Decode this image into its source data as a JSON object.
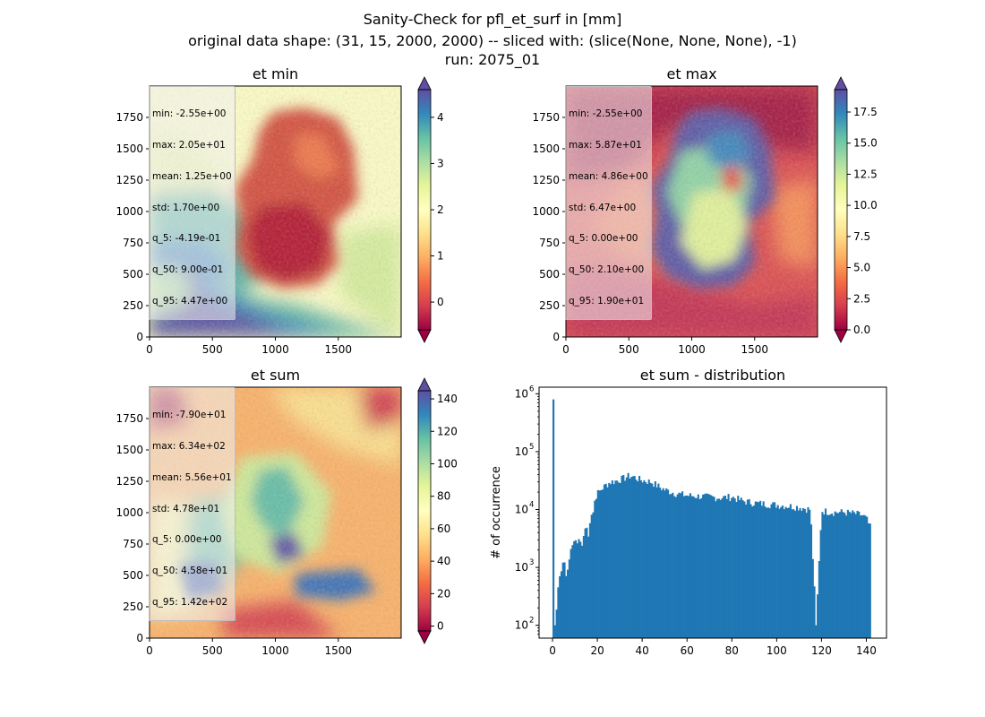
{
  "figure": {
    "title_lines": [
      "Sanity-Check for pfl_et_surf in [mm]",
      "original data shape: (31, 15, 2000, 2000) -- sliced with: (slice(None, None, None), -1)",
      "run: 2075_01"
    ]
  },
  "colors": {
    "spectral": [
      "#9e0142",
      "#d53e4f",
      "#f46d43",
      "#fdae61",
      "#fee08b",
      "#ffffbf",
      "#e6f598",
      "#abdda4",
      "#66c2a5",
      "#3288bd",
      "#5e4fa2"
    ],
    "bar": "#1f77b4",
    "stats_box": "#f0f0f0"
  },
  "chart_data": [
    {
      "type": "heatmap",
      "title": "et min",
      "xlim": [
        0,
        2000
      ],
      "ylim": [
        0,
        2000
      ],
      "xticks": [
        0,
        500,
        1000,
        1500
      ],
      "yticks": [
        0,
        250,
        500,
        750,
        1000,
        1250,
        1500,
        1750
      ],
      "colorbar": {
        "range": [
          -0.6,
          4.6
        ],
        "ticks": [
          0,
          1,
          2,
          3,
          4
        ],
        "extend": "both"
      },
      "stats": [
        "min: -2.55e+00",
        "max: 2.05e+01",
        "mean: 1.25e+00",
        "std: 1.70e+00",
        "q_5: -4.19e-01",
        "q_50: 9.00e-01",
        "q_95: 4.47e+00"
      ]
    },
    {
      "type": "heatmap",
      "title": "et max",
      "xlim": [
        0,
        2000
      ],
      "ylim": [
        0,
        2000
      ],
      "xticks": [
        0,
        500,
        1000,
        1500
      ],
      "yticks": [
        0,
        250,
        500,
        750,
        1000,
        1250,
        1500,
        1750
      ],
      "colorbar": {
        "range": [
          0,
          19.3
        ],
        "ticks": [
          0.0,
          2.5,
          5.0,
          7.5,
          10.0,
          12.5,
          15.0,
          17.5
        ],
        "tick_labels": [
          "0.0",
          "2.5",
          "5.0",
          "7.5",
          "10.0",
          "12.5",
          "15.0",
          "17.5"
        ],
        "extend": "both"
      },
      "stats": [
        "min: -2.55e+00",
        "max: 5.87e+01",
        "mean: 4.86e+00",
        "std: 6.47e+00",
        "q_5: 0.00e+00",
        "q_50: 2.10e+00",
        "q_95: 1.90e+01"
      ]
    },
    {
      "type": "heatmap",
      "title": "et sum",
      "xlim": [
        0,
        2000
      ],
      "ylim": [
        0,
        2000
      ],
      "xticks": [
        0,
        500,
        1000,
        1500
      ],
      "yticks": [
        0,
        250,
        500,
        750,
        1000,
        1250,
        1500,
        1750
      ],
      "colorbar": {
        "range": [
          -3,
          145
        ],
        "ticks": [
          0,
          20,
          40,
          60,
          80,
          100,
          120,
          140
        ],
        "extend": "both"
      },
      "stats": [
        "min: -7.90e+01",
        "max: 6.34e+02",
        "mean: 5.56e+01",
        "std: 4.78e+01",
        "q_5: 0.00e+00",
        "q_50: 4.58e+01",
        "q_95: 1.42e+02"
      ]
    },
    {
      "type": "bar",
      "title": "et sum - distribution",
      "xlabel": "",
      "ylabel": "# of occurrence",
      "yscale": "log",
      "xlim": [
        -6,
        149
      ],
      "ylim": [
        60,
        1300000
      ],
      "xticks": [
        0,
        20,
        40,
        60,
        80,
        100,
        120,
        140
      ],
      "yticks": [
        100,
        1000,
        10000,
        100000,
        1000000
      ],
      "ytick_exponents": [
        "2",
        "3",
        "4",
        "5",
        "6"
      ],
      "ytick_base": "10",
      "bin_range": [
        0,
        142
      ],
      "bin_count": 200,
      "anchors": [
        [
          0.0,
          800000
        ],
        [
          0.7,
          100
        ],
        [
          1.4,
          100
        ],
        [
          2.1,
          320
        ],
        [
          2.8,
          600
        ],
        [
          3.5,
          800
        ],
        [
          4.2,
          900
        ],
        [
          5.0,
          1600
        ],
        [
          6.0,
          700
        ],
        [
          7.0,
          1000
        ],
        [
          8.0,
          2000
        ],
        [
          9.0,
          2500
        ],
        [
          10.0,
          3100
        ],
        [
          11.0,
          2600
        ],
        [
          12.0,
          3300
        ],
        [
          13.0,
          2200
        ],
        [
          14.0,
          3800
        ],
        [
          15.0,
          5600
        ],
        [
          16.0,
          3300
        ],
        [
          17.0,
          9000
        ],
        [
          18.0,
          8500
        ],
        [
          19.0,
          16000
        ],
        [
          20.0,
          19000
        ],
        [
          22.0,
          23000
        ],
        [
          24.0,
          27000
        ],
        [
          26.0,
          30000
        ],
        [
          28.0,
          31000
        ],
        [
          30.0,
          33000
        ],
        [
          32.0,
          35000
        ],
        [
          34.0,
          38000
        ],
        [
          36.0,
          37000
        ],
        [
          38.0,
          34000
        ],
        [
          40.0,
          32000
        ],
        [
          42.0,
          31000
        ],
        [
          44.0,
          30000
        ],
        [
          46.0,
          27000
        ],
        [
          48.0,
          24000
        ],
        [
          50.0,
          22000
        ],
        [
          55.0,
          19000
        ],
        [
          60.0,
          17500
        ],
        [
          65.0,
          17000
        ],
        [
          70.0,
          16500
        ],
        [
          75.0,
          16000
        ],
        [
          80.0,
          16500
        ],
        [
          85.0,
          14000
        ],
        [
          90.0,
          13000
        ],
        [
          95.0,
          12500
        ],
        [
          100.0,
          12000
        ],
        [
          105.0,
          11500
        ],
        [
          110.0,
          11000
        ],
        [
          115.0,
          10000
        ],
        [
          117.6,
          100
        ],
        [
          120.0,
          9500
        ],
        [
          125.0,
          9000
        ],
        [
          130.0,
          9000
        ],
        [
          135.0,
          8500
        ],
        [
          138.0,
          8000
        ],
        [
          140.0,
          7000
        ],
        [
          141.5,
          5000
        ]
      ]
    }
  ]
}
